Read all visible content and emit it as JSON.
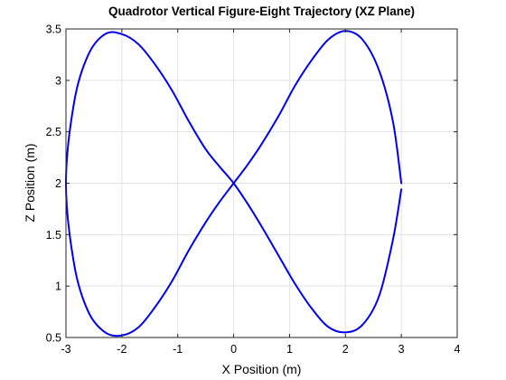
{
  "chart_data": {
    "type": "line",
    "title": "Quadrotor Vertical Figure-Eight Trajectory (XZ Plane)",
    "xlabel": "X Position (m)",
    "ylabel": "Z Position (m)",
    "xlim": [
      -3,
      4
    ],
    "ylim": [
      0.5,
      3.5
    ],
    "xticks": [
      -3,
      -2,
      -1,
      0,
      1,
      2,
      3,
      4
    ],
    "yticks": [
      0.5,
      1,
      1.5,
      2,
      2.5,
      3,
      3.5
    ],
    "xtick_labels": [
      "-3",
      "-2",
      "-1",
      "0",
      "1",
      "2",
      "3",
      "4"
    ],
    "ytick_labels": [
      "0.5",
      "1",
      "1.5",
      "2",
      "2.5",
      "3",
      "3.5"
    ],
    "grid": true,
    "line_color": "#0000ee",
    "series": [
      {
        "x": [
          3.0,
          2.85,
          2.6,
          2.3,
          2.0,
          1.7,
          1.4,
          1.1,
          0.8,
          0.5,
          0.25,
          0.0,
          -0.25,
          -0.5,
          -0.8,
          -1.1,
          -1.4,
          -1.7,
          -2.0,
          -2.3,
          -2.6,
          -2.85,
          -3.0,
          -2.85,
          -2.6,
          -2.3,
          -2.0,
          -1.7,
          -1.4,
          -1.1,
          -0.8,
          -0.5,
          -0.25,
          0.0,
          0.25,
          0.5,
          0.8,
          1.1,
          1.4,
          1.7,
          2.0,
          2.3,
          2.6,
          2.85,
          3.0
        ],
        "y": [
          2.0,
          2.6,
          3.1,
          3.4,
          3.48,
          3.4,
          3.2,
          2.95,
          2.65,
          2.38,
          2.18,
          2.0,
          1.82,
          1.62,
          1.35,
          1.05,
          0.8,
          0.6,
          0.52,
          0.55,
          0.75,
          1.2,
          2.0,
          2.8,
          3.25,
          3.45,
          3.45,
          3.35,
          3.15,
          2.9,
          2.6,
          2.33,
          2.16,
          2.0,
          1.8,
          1.58,
          1.3,
          1.02,
          0.78,
          0.6,
          0.55,
          0.62,
          0.9,
          1.45,
          1.94
        ]
      }
    ]
  }
}
